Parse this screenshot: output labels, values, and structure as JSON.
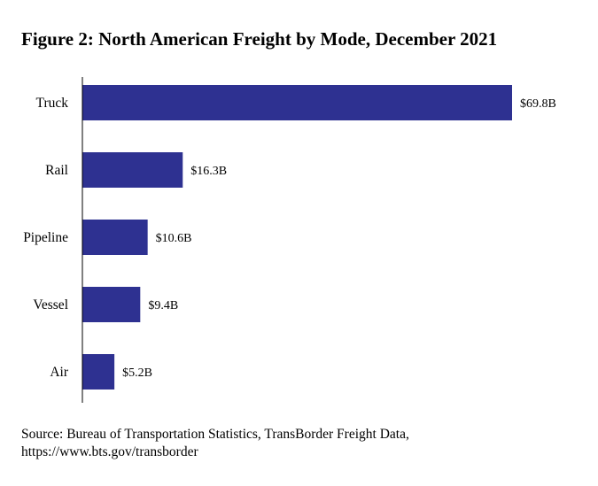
{
  "chart_data": {
    "type": "bar",
    "orientation": "horizontal",
    "title": "Figure 2: North American Freight by Mode, December 2021",
    "categories": [
      "Truck",
      "Rail",
      "Pipeline",
      "Vessel",
      "Air"
    ],
    "values": [
      69.8,
      16.3,
      10.6,
      9.4,
      5.2
    ],
    "value_labels": [
      "$69.8B",
      "$16.3B",
      "$10.6B",
      "$9.4B",
      "$5.2B"
    ],
    "xlabel": "",
    "ylabel": "",
    "xlim": [
      0,
      69.8
    ],
    "grid": false,
    "legend": "none",
    "bar_color": "#2e3191"
  },
  "source": {
    "line1": "Source: Bureau of Transportation Statistics, TransBorder Freight Data,",
    "line2": "https://www.bts.gov/transborder"
  }
}
